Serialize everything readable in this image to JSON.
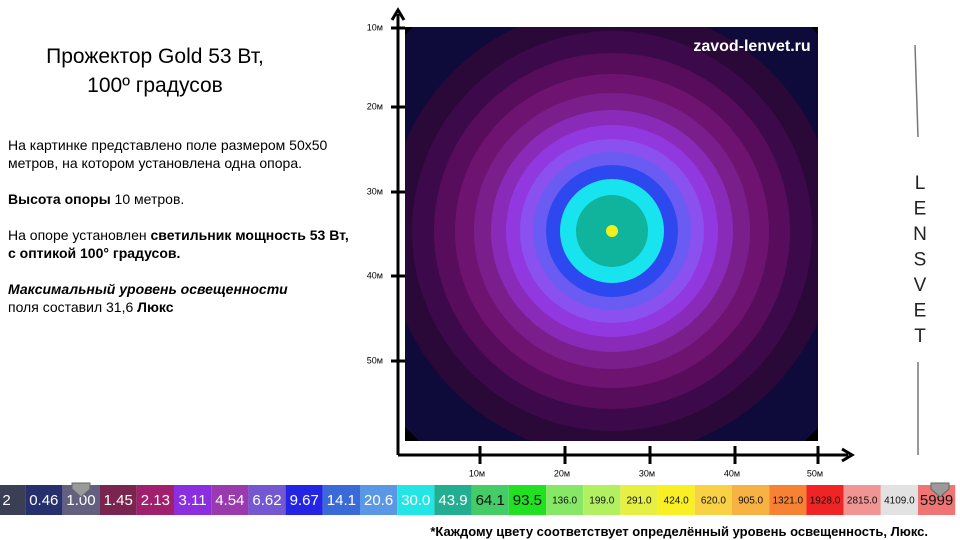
{
  "header": {
    "title_lines": [
      "Прожектор Gold 53 Вт,",
      "100º градусов"
    ]
  },
  "description": {
    "intro": "На картинке представлено поле размером 50x50 метров, на котором установлена одна опора.",
    "height": [
      "Высота опоры",
      " 10 метров."
    ],
    "fixture": [
      "На опоре установлен ",
      "светильник мощность 53 Вт, с оптикой 100° градусов."
    ],
    "max_level": [
      "Максимальный уровень освещенности",
      "поля составил 31,6 ",
      "Люкс"
    ]
  },
  "map": {
    "watermark": "zavod-lenvet.ru",
    "y_axis_labels": [
      "10м",
      "20м",
      "30м",
      "40м",
      "50м"
    ],
    "x_axis_labels": [
      "10м",
      "20м",
      "30м",
      "40м",
      "50м"
    ]
  },
  "side_letters": [
    "L",
    "E",
    "N",
    "S",
    "V",
    "E",
    "T"
  ],
  "scale": [
    {
      "label": "2",
      "color": "#3b3f55"
    },
    {
      "label": "0.46",
      "color": "#26306e"
    },
    {
      "label": "1.00",
      "color": "#62607e"
    },
    {
      "label": "1.45",
      "color": "#7a2450"
    },
    {
      "label": "2.13",
      "color": "#a0206e"
    },
    {
      "label": "3.11",
      "color": "#8a2ee0"
    },
    {
      "label": "4.54",
      "color": "#9a3aae"
    },
    {
      "label": "6.62",
      "color": "#7358d2"
    },
    {
      "label": "9.67",
      "color": "#2424e4"
    },
    {
      "label": "14.1",
      "color": "#3a6ad8"
    },
    {
      "label": "20.6",
      "color": "#5a98e6"
    },
    {
      "label": "30.0",
      "color": "#22e6e6"
    },
    {
      "label": "43.9",
      "color": "#22ae90"
    },
    {
      "label": "64.1",
      "color": "#44cc66"
    },
    {
      "label": "93.5",
      "color": "#22e022"
    },
    {
      "label": "136.0",
      "color": "#86e866"
    },
    {
      "label": "199.0",
      "color": "#b2f062"
    },
    {
      "label": "291.0",
      "color": "#e6f044"
    },
    {
      "label": "424.0",
      "color": "#f8f024"
    },
    {
      "label": "620.0",
      "color": "#f8d244"
    },
    {
      "label": "905.0",
      "color": "#f8b244"
    },
    {
      "label": "1321.0",
      "color": "#f88234"
    },
    {
      "label": "1928.0",
      "color": "#f02424"
    },
    {
      "label": "2815.0",
      "color": "#f09494"
    },
    {
      "label": "4109.0",
      "color": "#e2e2e2"
    },
    {
      "label": "5999",
      "color": "#f07474"
    }
  ],
  "footnote": "*Каждому цвету соответствует определённый уровень освещенность, Люкс."
}
